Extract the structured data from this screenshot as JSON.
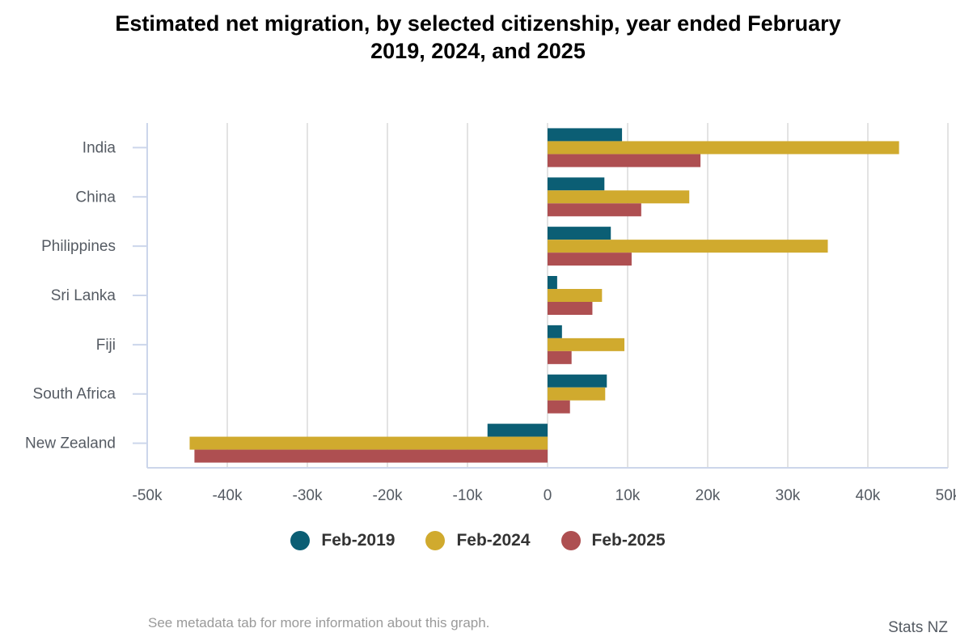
{
  "chart_data": {
    "type": "bar",
    "orientation": "horizontal",
    "title_lines": [
      "Estimated net migration, by selected citizenship, year ended February",
      "2019, 2024, and 2025"
    ],
    "categories": [
      "India",
      "China",
      "Philippines",
      "Sri Lanka",
      "Fiji",
      "South Africa",
      "New Zealand"
    ],
    "series": [
      {
        "name": "Feb-2019",
        "color": "#0b5e74",
        "values": [
          9300,
          7100,
          7900,
          1200,
          1800,
          7400,
          -7500
        ]
      },
      {
        "name": "Feb-2024",
        "color": "#d0aa2e",
        "values": [
          43900,
          17700,
          35000,
          6800,
          9600,
          7200,
          -44700
        ]
      },
      {
        "name": "Feb-2025",
        "color": "#ae4f51",
        "values": [
          19100,
          11700,
          10500,
          5600,
          3000,
          2800,
          -44100
        ]
      }
    ],
    "xlim": [
      -50000,
      50000
    ],
    "xticks": [
      -50000,
      -40000,
      -30000,
      -20000,
      -10000,
      0,
      10000,
      20000,
      30000,
      40000,
      50000
    ],
    "xtick_labels": [
      "-50k",
      "-40k",
      "-30k",
      "-20k",
      "-10k",
      "0",
      "10k",
      "20k",
      "30k",
      "40k",
      "50k"
    ],
    "xlabel": "",
    "ylabel": "",
    "grid": true,
    "legend_position": "bottom-center"
  },
  "legend": [
    {
      "label": "Feb-2019",
      "color": "#0b5e74"
    },
    {
      "label": "Feb-2024",
      "color": "#d0aa2e"
    },
    {
      "label": "Feb-2025",
      "color": "#ae4f51"
    }
  ],
  "footnote": "See metadata tab for more information about this graph.",
  "credit": "Stats NZ"
}
